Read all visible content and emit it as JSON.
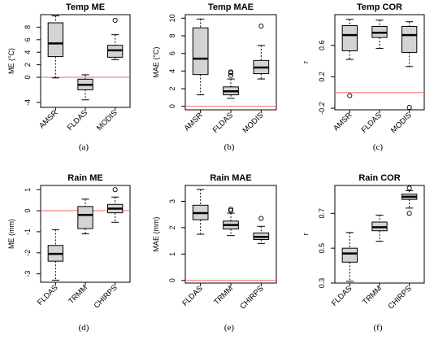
{
  "chart_data": [
    {
      "type": "boxplot",
      "panel": "(a)",
      "title": "Temp ME",
      "ylabel": "ME (°C)",
      "ylim": [
        -4.8,
        10
      ],
      "yticks": [
        -4,
        0,
        2,
        4,
        6,
        8
      ],
      "ref_line": 0,
      "ref_color": "#ff6666",
      "categories": [
        "AMSR",
        "FLDAS",
        "MODIS"
      ],
      "boxes": [
        {
          "min": -0.1,
          "q1": 3.3,
          "median": 5.4,
          "q3": 8.7,
          "max": 9.8,
          "outliers": []
        },
        {
          "min": -3.6,
          "q1": -2.0,
          "median": -1.2,
          "q3": -0.3,
          "max": 0.4,
          "outliers": []
        },
        {
          "min": 2.8,
          "q1": 3.2,
          "median": 4.3,
          "q3": 5.1,
          "max": 6.8,
          "outliers": [
            9.1
          ]
        }
      ]
    },
    {
      "type": "boxplot",
      "panel": "(b)",
      "title": "Temp MAE",
      "ylabel": "MAE (°C)",
      "ylim": [
        -0.4,
        10.4
      ],
      "yticks": [
        0,
        2,
        4,
        6,
        8,
        10
      ],
      "ref_line": 0,
      "ref_color": "#ff6666",
      "categories": [
        "AMSR",
        "FLDAS",
        "MODIS"
      ],
      "boxes": [
        {
          "min": 1.3,
          "q1": 3.6,
          "median": 5.4,
          "q3": 8.9,
          "max": 9.9,
          "outliers": []
        },
        {
          "min": 0.9,
          "q1": 1.3,
          "median": 1.7,
          "q3": 2.2,
          "max": 3.1,
          "outliers": [
            3.5,
            3.8,
            3.9
          ]
        },
        {
          "min": 3.1,
          "q1": 3.7,
          "median": 4.4,
          "q3": 5.2,
          "max": 6.9,
          "outliers": [
            9.1
          ]
        }
      ]
    },
    {
      "type": "boxplot",
      "panel": "(c)",
      "title": "Temp COR",
      "ylabel": "r",
      "ylim": [
        -0.22,
        0.99
      ],
      "yticks": [
        -0.2,
        0.2,
        0.6
      ],
      "ref_line": 0,
      "ref_color": "#ff6666",
      "categories": [
        "AMSR",
        "FLDAS",
        "MODIS"
      ],
      "boxes": [
        {
          "min": 0.42,
          "q1": 0.53,
          "median": 0.73,
          "q3": 0.85,
          "max": 0.93,
          "outliers": [
            -0.04
          ]
        },
        {
          "min": 0.56,
          "q1": 0.7,
          "median": 0.76,
          "q3": 0.84,
          "max": 0.92,
          "outliers": []
        },
        {
          "min": 0.33,
          "q1": 0.51,
          "median": 0.73,
          "q3": 0.84,
          "max": 0.9,
          "outliers": [
            -0.19
          ]
        }
      ]
    },
    {
      "type": "boxplot",
      "panel": "(d)",
      "title": "Rain ME",
      "ylabel": "ME (mm)",
      "ylim": [
        -3.4,
        1.2
      ],
      "yticks": [
        -3,
        -2,
        -1,
        0,
        1
      ],
      "ref_line": 0,
      "ref_color": "#ff6666",
      "categories": [
        "FLDAS",
        "TRMM",
        "CHIRPS"
      ],
      "boxes": [
        {
          "min": -3.3,
          "q1": -2.4,
          "median": -2.05,
          "q3": -1.65,
          "max": -0.9,
          "outliers": []
        },
        {
          "min": -1.1,
          "q1": -0.85,
          "median": -0.2,
          "q3": 0.2,
          "max": 0.55,
          "outliers": []
        },
        {
          "min": -0.55,
          "q1": -0.1,
          "median": 0.1,
          "q3": 0.3,
          "max": 0.65,
          "outliers": [
            1.0
          ]
        }
      ]
    },
    {
      "type": "boxplot",
      "panel": "(e)",
      "title": "Rain MAE",
      "ylabel": "MAE (mm)",
      "ylim": [
        -0.1,
        3.6
      ],
      "yticks": [
        0.0,
        1.0,
        2.0,
        3.0
      ],
      "ref_line": 0,
      "ref_color": "#ff6666",
      "categories": [
        "FLDAS",
        "TRMM",
        "CHIRPS"
      ],
      "boxes": [
        {
          "min": 1.75,
          "q1": 2.3,
          "median": 2.55,
          "q3": 2.85,
          "max": 3.45,
          "outliers": []
        },
        {
          "min": 1.7,
          "q1": 1.95,
          "median": 2.1,
          "q3": 2.25,
          "max": 2.55,
          "outliers": [
            2.65,
            2.7
          ]
        },
        {
          "min": 1.4,
          "q1": 1.55,
          "median": 1.65,
          "q3": 1.8,
          "max": 2.05,
          "outliers": [
            2.35
          ]
        }
      ]
    },
    {
      "type": "boxplot",
      "panel": "(f)",
      "title": "Rain COR",
      "ylabel": "r",
      "ylim": [
        0.3,
        0.86
      ],
      "yticks": [
        0.3,
        0.5,
        0.7
      ],
      "ref_line": null,
      "ref_color": "#ff6666",
      "categories": [
        "FLDAS",
        "TRMM",
        "CHIRPS"
      ],
      "boxes": [
        {
          "min": 0.31,
          "q1": 0.42,
          "median": 0.47,
          "q3": 0.5,
          "max": 0.59,
          "outliers": []
        },
        {
          "min": 0.54,
          "q1": 0.6,
          "median": 0.62,
          "q3": 0.65,
          "max": 0.69,
          "outliers": []
        },
        {
          "min": 0.73,
          "q1": 0.78,
          "median": 0.795,
          "q3": 0.81,
          "max": 0.83,
          "outliers": [
            0.7,
            0.845
          ]
        }
      ]
    }
  ],
  "colors": {
    "box_fill": "#d3d3d3",
    "stroke": "#000000",
    "ref_line": "#ff6666"
  }
}
